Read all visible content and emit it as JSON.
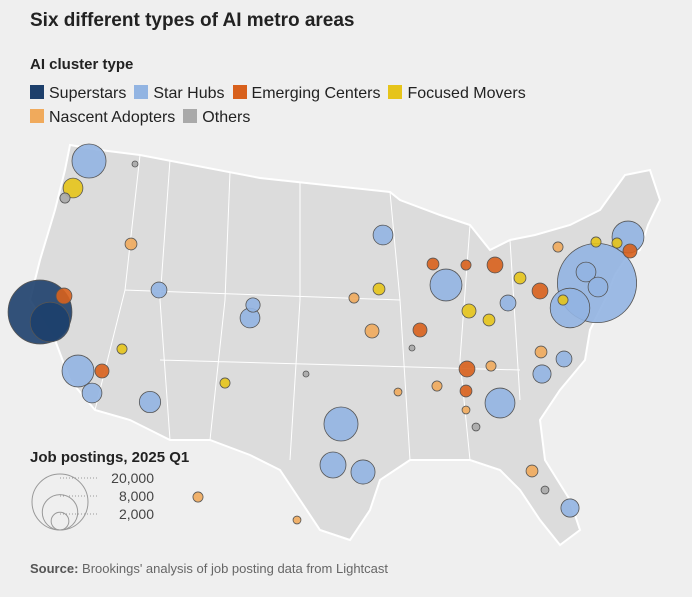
{
  "chart_data": {
    "type": "bubble_map",
    "title": "Six different types of AI metro areas",
    "legend_title": "AI cluster type",
    "series": [
      {
        "name": "Superstars",
        "color": "#1d3f6b",
        "values": [
          26000,
          10000
        ]
      },
      {
        "name": "Star Hubs",
        "color": "#92b4e2",
        "values": [
          7400,
          40000,
          6500,
          10000,
          6500,
          6500,
          7400,
          4300,
          5700,
          3700,
          2500,
          2500,
          2900,
          2500,
          1600,
          2500,
          2100,
          1600,
          1600,
          2100,
          2500,
          1300
        ]
      },
      {
        "name": "Emerging Centers",
        "color": "#d8601c",
        "values": [
          1600,
          1250,
          1600,
          1600,
          1250,
          1600,
          900,
          1250,
          650,
          900
        ]
      },
      {
        "name": "Focused Movers",
        "color": "#e6c41a",
        "values": [
          2500,
          900,
          1250,
          900,
          650,
          650,
          650,
          650,
          900,
          650
        ]
      },
      {
        "name": "Nascent Adopters",
        "color": "#f0aa5c",
        "values": [
          900,
          1250,
          900,
          650,
          650,
          650,
          650,
          900,
          650,
          400,
          400,
          400
        ]
      },
      {
        "name": "Others",
        "color": "#a9a9a9",
        "values": [
          650,
          400,
          400,
          230,
          230,
          230
        ]
      }
    ],
    "size_legend_title": "Job postings, 2025 Q1",
    "size_ticks": [
      {
        "value": 20000,
        "label": "20,000"
      },
      {
        "value": 8000,
        "label": "8,000"
      },
      {
        "value": 2000,
        "label": "2,000"
      }
    ],
    "source_label": "Source:",
    "source": "Brookings' analysis of job posting data from Lightcast"
  }
}
